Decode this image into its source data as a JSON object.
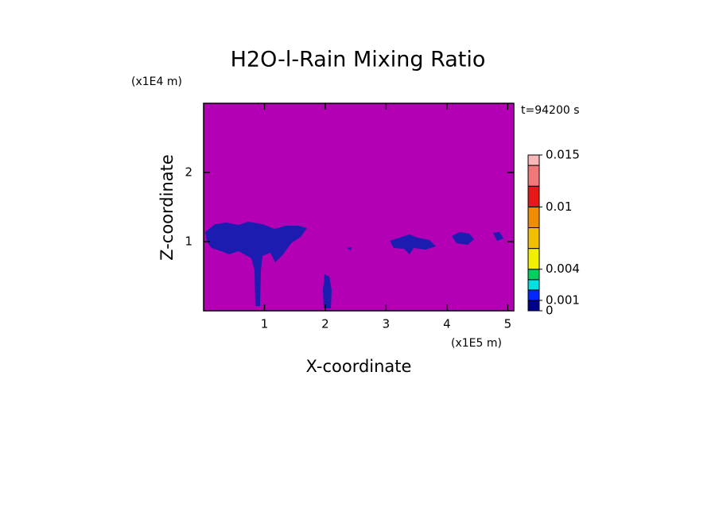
{
  "chart_data": {
    "type": "contour",
    "title": "H2O-l-Rain Mixing Ratio",
    "xlabel": "X-coordinate",
    "ylabel": "Z-coordinate",
    "xunit": "(x1E5 m)",
    "yunit": "(x1E4 m)",
    "annotation": "t=94200 s",
    "xlim": [
      0,
      5.1
    ],
    "xticks": [
      1,
      2,
      3,
      4,
      5
    ],
    "ylim": [
      0,
      3
    ],
    "yticks": [
      1,
      2
    ],
    "background": "#b400b4",
    "colorbar": {
      "boundaries": [
        0,
        0.001,
        0.002,
        0.003,
        0.004,
        0.006,
        0.008,
        0.01,
        0.012,
        0.014,
        0.015
      ],
      "colors": [
        "#00008c",
        "#0028ff",
        "#00e0e0",
        "#00d060",
        "#f0f000",
        "#f0c000",
        "#f08c00",
        "#e81818",
        "#f07878",
        "#f8b8b8"
      ],
      "lim": [
        0,
        0.015
      ],
      "ticks": [
        0,
        0.001,
        0.004,
        0.01,
        0.015
      ]
    }
  }
}
